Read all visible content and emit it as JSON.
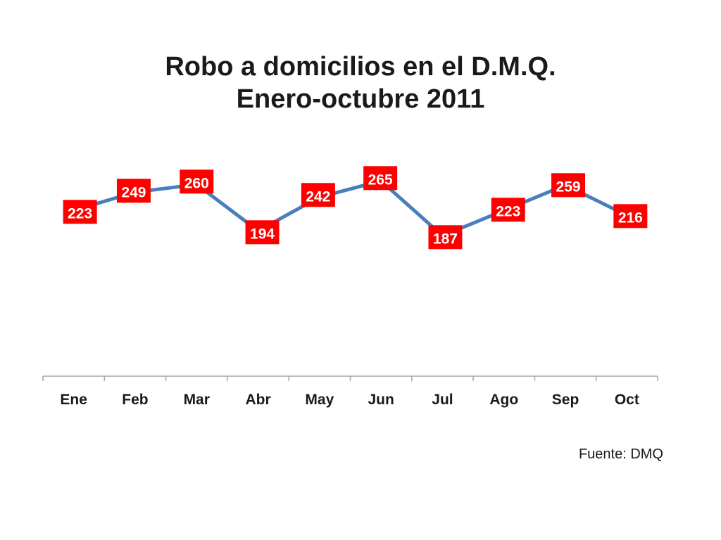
{
  "chart_data": {
    "type": "line",
    "title": "Robo a domicilios en el D.M.Q.",
    "subtitle": "Enero-octubre 2011",
    "categories": [
      "Ene",
      "Feb",
      "Mar",
      "Abr",
      "May",
      "Jun",
      "Jul",
      "Ago",
      "Sep",
      "Oct"
    ],
    "series": [
      {
        "values": [
          223,
          249,
          260,
          194,
          242,
          265,
          187,
          223,
          259,
          216
        ]
      }
    ],
    "data_labels": [
      "223",
      "249",
      "260",
      "194",
      "242",
      "265",
      "187",
      "223",
      "259",
      "216"
    ],
    "xlabel": "",
    "ylabel": "",
    "y_axis_visible": false,
    "grid": false,
    "legend": "none",
    "colors": {
      "line": "#4a7ebb",
      "label_bg": "#ff0000",
      "label_text": "#ffffff",
      "axis": "#a6a6a6",
      "text": "#1a1a1a"
    }
  },
  "source": "Fuente: DMQ"
}
